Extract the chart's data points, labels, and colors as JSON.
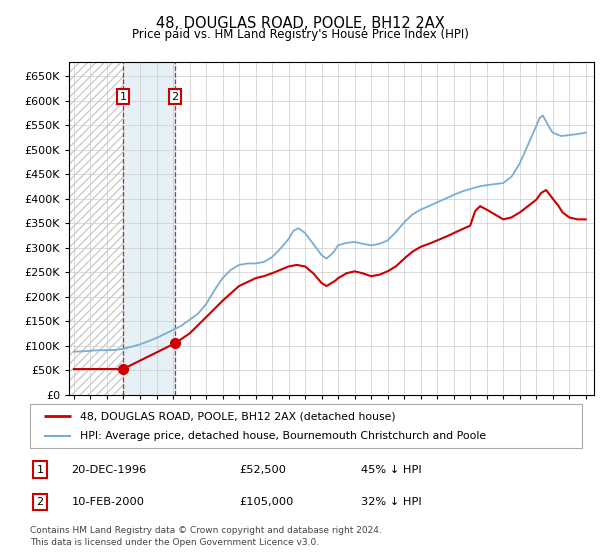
{
  "title": "48, DOUGLAS ROAD, POOLE, BH12 2AX",
  "subtitle": "Price paid vs. HM Land Registry's House Price Index (HPI)",
  "legend_line1": "48, DOUGLAS ROAD, POOLE, BH12 2AX (detached house)",
  "legend_line2": "HPI: Average price, detached house, Bournemouth Christchurch and Poole",
  "footer": "Contains HM Land Registry data © Crown copyright and database right 2024.\nThis data is licensed under the Open Government Licence v3.0.",
  "transactions": [
    {
      "id": 1,
      "date": "20-DEC-1996",
      "price": 52500,
      "pct": "45% ↓ HPI",
      "year": 1996.97
    },
    {
      "id": 2,
      "date": "10-FEB-2000",
      "price": 105000,
      "pct": "32% ↓ HPI",
      "year": 2000.12
    }
  ],
  "sale_color": "#cc0000",
  "hpi_color": "#7aadd4",
  "ylim": [
    0,
    680000
  ],
  "xlim_start": 1993.7,
  "xlim_end": 2025.5,
  "ytick_step": 50000,
  "sale_years": [
    1996.97,
    2000.12
  ],
  "sale_prices": [
    52500,
    105000
  ],
  "region_shade_start": 1996.97,
  "region_shade_end": 2000.12,
  "hpi_anchors": [
    [
      1994.0,
      88000
    ],
    [
      1994.5,
      88500
    ],
    [
      1995.0,
      90000
    ],
    [
      1995.5,
      91000
    ],
    [
      1996.0,
      91000
    ],
    [
      1996.5,
      91500
    ],
    [
      1997.0,
      94000
    ],
    [
      1997.5,
      98000
    ],
    [
      1998.0,
      103000
    ],
    [
      1998.5,
      109000
    ],
    [
      1999.0,
      116000
    ],
    [
      1999.5,
      124000
    ],
    [
      2000.0,
      132000
    ],
    [
      2000.5,
      141000
    ],
    [
      2001.0,
      153000
    ],
    [
      2001.5,
      165000
    ],
    [
      2002.0,
      185000
    ],
    [
      2002.5,
      213000
    ],
    [
      2003.0,
      238000
    ],
    [
      2003.5,
      255000
    ],
    [
      2004.0,
      265000
    ],
    [
      2004.5,
      268000
    ],
    [
      2005.0,
      268000
    ],
    [
      2005.5,
      271000
    ],
    [
      2006.0,
      281000
    ],
    [
      2006.5,
      298000
    ],
    [
      2007.0,
      318000
    ],
    [
      2007.3,
      335000
    ],
    [
      2007.6,
      340000
    ],
    [
      2008.0,
      330000
    ],
    [
      2008.5,
      308000
    ],
    [
      2009.0,
      285000
    ],
    [
      2009.3,
      278000
    ],
    [
      2009.7,
      290000
    ],
    [
      2010.0,
      305000
    ],
    [
      2010.5,
      310000
    ],
    [
      2011.0,
      312000
    ],
    [
      2011.5,
      308000
    ],
    [
      2012.0,
      305000
    ],
    [
      2012.5,
      308000
    ],
    [
      2013.0,
      315000
    ],
    [
      2013.5,
      332000
    ],
    [
      2014.0,
      352000
    ],
    [
      2014.5,
      368000
    ],
    [
      2015.0,
      378000
    ],
    [
      2015.5,
      385000
    ],
    [
      2016.0,
      393000
    ],
    [
      2016.5,
      400000
    ],
    [
      2017.0,
      408000
    ],
    [
      2017.5,
      415000
    ],
    [
      2018.0,
      420000
    ],
    [
      2018.5,
      425000
    ],
    [
      2019.0,
      428000
    ],
    [
      2019.5,
      430000
    ],
    [
      2020.0,
      432000
    ],
    [
      2020.5,
      445000
    ],
    [
      2021.0,
      472000
    ],
    [
      2021.5,
      510000
    ],
    [
      2022.0,
      548000
    ],
    [
      2022.2,
      565000
    ],
    [
      2022.4,
      570000
    ],
    [
      2022.6,
      558000
    ],
    [
      2022.8,
      545000
    ],
    [
      2023.0,
      535000
    ],
    [
      2023.5,
      528000
    ],
    [
      2024.0,
      530000
    ],
    [
      2024.5,
      532000
    ],
    [
      2025.0,
      535000
    ]
  ],
  "sale_anchors": [
    [
      1994.0,
      52500
    ],
    [
      1996.97,
      52500
    ],
    [
      2000.12,
      105000
    ],
    [
      2001.0,
      125000
    ],
    [
      2002.0,
      158000
    ],
    [
      2003.0,
      192000
    ],
    [
      2004.0,
      222000
    ],
    [
      2005.0,
      238000
    ],
    [
      2005.5,
      242000
    ],
    [
      2006.0,
      248000
    ],
    [
      2006.5,
      255000
    ],
    [
      2007.0,
      262000
    ],
    [
      2007.5,
      265000
    ],
    [
      2008.0,
      262000
    ],
    [
      2008.5,
      248000
    ],
    [
      2009.0,
      228000
    ],
    [
      2009.3,
      222000
    ],
    [
      2009.8,
      232000
    ],
    [
      2010.0,
      238000
    ],
    [
      2010.5,
      248000
    ],
    [
      2011.0,
      252000
    ],
    [
      2011.5,
      248000
    ],
    [
      2012.0,
      242000
    ],
    [
      2012.5,
      245000
    ],
    [
      2013.0,
      252000
    ],
    [
      2013.5,
      262000
    ],
    [
      2014.0,
      278000
    ],
    [
      2014.5,
      292000
    ],
    [
      2015.0,
      302000
    ],
    [
      2015.5,
      308000
    ],
    [
      2016.0,
      315000
    ],
    [
      2016.5,
      322000
    ],
    [
      2017.0,
      330000
    ],
    [
      2017.5,
      338000
    ],
    [
      2018.0,
      345000
    ],
    [
      2018.3,
      375000
    ],
    [
      2018.6,
      385000
    ],
    [
      2019.0,
      378000
    ],
    [
      2019.5,
      368000
    ],
    [
      2020.0,
      358000
    ],
    [
      2020.5,
      362000
    ],
    [
      2021.0,
      372000
    ],
    [
      2021.5,
      385000
    ],
    [
      2022.0,
      398000
    ],
    [
      2022.3,
      412000
    ],
    [
      2022.6,
      418000
    ],
    [
      2023.0,
      400000
    ],
    [
      2023.3,
      388000
    ],
    [
      2023.6,
      372000
    ],
    [
      2024.0,
      362000
    ],
    [
      2024.5,
      358000
    ],
    [
      2025.0,
      358000
    ]
  ]
}
